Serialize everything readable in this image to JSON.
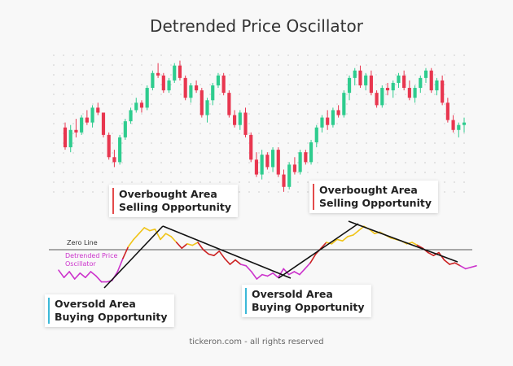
{
  "title": "Detrended Price Oscillator",
  "footer": "tickeron.com - all rights reserved",
  "labels": {
    "zero_line": "Zero Line",
    "dpo_line1": "Detrended Price",
    "dpo_line2": "Oscillator"
  },
  "callouts": {
    "overbought_1": {
      "line1": "Overbought Area",
      "line2": "Selling Opportunity"
    },
    "overbought_2": {
      "line1": "Overbought Area",
      "line2": "Selling Opportunity"
    },
    "oversold_1": {
      "line1": "Oversold Area",
      "line2": "Buying Opportunity"
    },
    "oversold_2": {
      "line1": "Oversold Area",
      "line2": "Buying Opportunity"
    }
  },
  "colors": {
    "up": "#2ecc8e",
    "down": "#e8364f",
    "oversold": "#cc33cc",
    "neutral": "#cc2222",
    "overbought": "#f0c419",
    "sell_bar": "#e34b4b",
    "buy_bar": "#3cb9d8"
  },
  "chart_data": [
    {
      "type": "candlestick",
      "ohlc": [
        [
          88,
          92,
          70,
          72
        ],
        [
          72,
          90,
          68,
          86
        ],
        [
          86,
          95,
          80,
          84
        ],
        [
          84,
          98,
          82,
          96
        ],
        [
          96,
          102,
          90,
          92
        ],
        [
          92,
          106,
          88,
          104
        ],
        [
          104,
          108,
          98,
          100
        ],
        [
          100,
          100,
          80,
          82
        ],
        [
          82,
          84,
          62,
          64
        ],
        [
          64,
          70,
          56,
          60
        ],
        [
          60,
          82,
          58,
          80
        ],
        [
          80,
          95,
          78,
          93
        ],
        [
          93,
          104,
          91,
          102
        ],
        [
          102,
          112,
          100,
          108
        ],
        [
          108,
          110,
          100,
          104
        ],
        [
          104,
          122,
          102,
          120
        ],
        [
          120,
          134,
          118,
          132
        ],
        [
          132,
          140,
          128,
          130
        ],
        [
          130,
          132,
          116,
          118
        ],
        [
          118,
          128,
          116,
          126
        ],
        [
          126,
          140,
          124,
          138
        ],
        [
          138,
          142,
          126,
          128
        ],
        [
          128,
          130,
          110,
          112
        ],
        [
          112,
          124,
          108,
          122
        ],
        [
          122,
          126,
          116,
          118
        ],
        [
          118,
          120,
          96,
          98
        ],
        [
          98,
          112,
          92,
          110
        ],
        [
          110,
          124,
          106,
          122
        ],
        [
          122,
          132,
          120,
          130
        ],
        [
          130,
          132,
          114,
          116
        ],
        [
          116,
          118,
          96,
          98
        ],
        [
          98,
          102,
          88,
          90
        ],
        [
          90,
          102,
          86,
          100
        ],
        [
          100,
          104,
          80,
          82
        ],
        [
          82,
          84,
          60,
          62
        ],
        [
          62,
          68,
          48,
          50
        ],
        [
          50,
          70,
          46,
          66
        ],
        [
          66,
          68,
          54,
          56
        ],
        [
          56,
          72,
          52,
          70
        ],
        [
          70,
          72,
          48,
          50
        ],
        [
          50,
          54,
          36,
          40
        ],
        [
          40,
          60,
          38,
          58
        ],
        [
          58,
          64,
          50,
          52
        ],
        [
          52,
          70,
          50,
          68
        ],
        [
          68,
          70,
          58,
          60
        ],
        [
          60,
          78,
          58,
          76
        ],
        [
          76,
          90,
          72,
          88
        ],
        [
          88,
          98,
          84,
          96
        ],
        [
          96,
          102,
          86,
          90
        ],
        [
          90,
          104,
          88,
          102
        ],
        [
          102,
          106,
          96,
          98
        ],
        [
          98,
          118,
          96,
          116
        ],
        [
          116,
          130,
          110,
          128
        ],
        [
          128,
          136,
          122,
          134
        ],
        [
          134,
          138,
          120,
          122
        ],
        [
          122,
          132,
          118,
          130
        ],
        [
          130,
          134,
          114,
          116
        ],
        [
          116,
          118,
          104,
          106
        ],
        [
          106,
          122,
          104,
          120
        ],
        [
          120,
          124,
          114,
          118
        ],
        [
          118,
          126,
          112,
          124
        ],
        [
          124,
          132,
          120,
          130
        ],
        [
          130,
          134,
          118,
          120
        ],
        [
          120,
          126,
          110,
          112
        ],
        [
          112,
          122,
          108,
          120
        ],
        [
          120,
          130,
          116,
          128
        ],
        [
          128,
          136,
          124,
          134
        ],
        [
          134,
          136,
          116,
          118
        ],
        [
          118,
          128,
          114,
          126
        ],
        [
          126,
          130,
          106,
          108
        ],
        [
          108,
          112,
          92,
          94
        ],
        [
          94,
          98,
          84,
          86
        ],
        [
          86,
          92,
          80,
          90
        ],
        [
          90,
          96,
          84,
          92
        ]
      ]
    },
    {
      "type": "line",
      "name": "Detrended Price Oscillator",
      "zero_value": 0,
      "ylim": [
        -60,
        40
      ],
      "values": [
        -28,
        -38,
        -30,
        -40,
        -32,
        -38,
        -30,
        -36,
        -44,
        -44,
        -42,
        -30,
        -12,
        4,
        14,
        22,
        30,
        26,
        28,
        14,
        22,
        18,
        10,
        2,
        8,
        6,
        10,
        0,
        -6,
        -8,
        -2,
        -12,
        -20,
        -14,
        -20,
        -22,
        -30,
        -40,
        -34,
        -36,
        -32,
        -38,
        -26,
        -34,
        -30,
        -34,
        -26,
        -18,
        -6,
        2,
        10,
        8,
        14,
        12,
        18,
        20,
        26,
        32,
        28,
        22,
        24,
        20,
        16,
        14,
        12,
        8,
        10,
        6,
        2,
        -4,
        -8,
        -4,
        -14,
        -20,
        -18,
        -22,
        -26,
        -24,
        -22
      ]
    }
  ]
}
